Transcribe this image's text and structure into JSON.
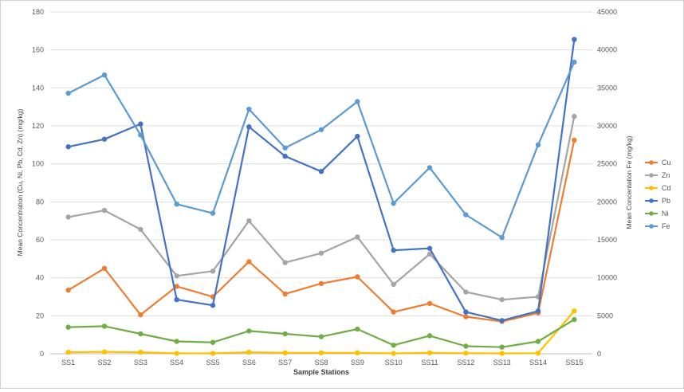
{
  "chart_data": {
    "type": "line",
    "title": "",
    "xlabel": "Sample Stations",
    "ylabel": "Mean Concentration (Cu, Ni, Pb, Cd, Zn) (mg/kg)",
    "y2label": "Mean Concentation Fe (mg/kg)",
    "categories": [
      "SS1",
      "SS2",
      "SS3",
      "SS4",
      "SS5",
      "SS6",
      "SS7",
      "SS8",
      "SS9",
      "SS10",
      "SS11",
      "SS12",
      "SS13",
      "SS14",
      "SS15"
    ],
    "ylim": [
      0,
      180
    ],
    "y2lim": [
      0,
      45000
    ],
    "yticks": [
      "0",
      "20",
      "40",
      "60",
      "80",
      "100",
      "120",
      "140",
      "160",
      "180"
    ],
    "y2ticks": [
      "0",
      "5000",
      "10000",
      "15000",
      "20000",
      "25000",
      "30000",
      "35000",
      "40000",
      "45000"
    ],
    "grid": true,
    "legend_position": "right",
    "series": [
      {
        "name": "Cu",
        "color": "#ED7D31",
        "axis": "left",
        "values": [
          33.5,
          45,
          20.5,
          35.5,
          30,
          48.5,
          31.5,
          37,
          40.5,
          22,
          26.5,
          19.5,
          17,
          21.5,
          112.5
        ]
      },
      {
        "name": "Zn",
        "color": "#A5A5A5",
        "axis": "left",
        "values": [
          72,
          75.5,
          65.5,
          41,
          43.5,
          70,
          48,
          53,
          61.5,
          36.5,
          52.5,
          32.5,
          28.5,
          30,
          125
        ]
      },
      {
        "name": "Cd",
        "color": "#FFC000",
        "axis": "left",
        "values": [
          0.8,
          1,
          0.8,
          0.2,
          0.2,
          0.8,
          0.5,
          0.5,
          0.5,
          0.2,
          0.5,
          0.3,
          0.2,
          0.3,
          22.5
        ]
      },
      {
        "name": "Pb",
        "color": "#4472C4",
        "axis": "left",
        "values": [
          109,
          113,
          121,
          28.5,
          25.5,
          119.5,
          104,
          96,
          114.5,
          54.5,
          55.5,
          22,
          17.5,
          22.5,
          165.5
        ]
      },
      {
        "name": "Ni",
        "color": "#70AD47",
        "axis": "left",
        "values": [
          14,
          14.5,
          10.5,
          6.5,
          6,
          12,
          10.5,
          9,
          13,
          4.5,
          9.5,
          4,
          3.5,
          6.5,
          18
        ]
      },
      {
        "name": "Fe",
        "color": "#5B9BD5",
        "axis": "right",
        "values": [
          34300,
          36700,
          28800,
          19700,
          18500,
          32200,
          27100,
          29500,
          33200,
          19800,
          24500,
          18300,
          15300,
          27500,
          38400
        ]
      }
    ]
  }
}
